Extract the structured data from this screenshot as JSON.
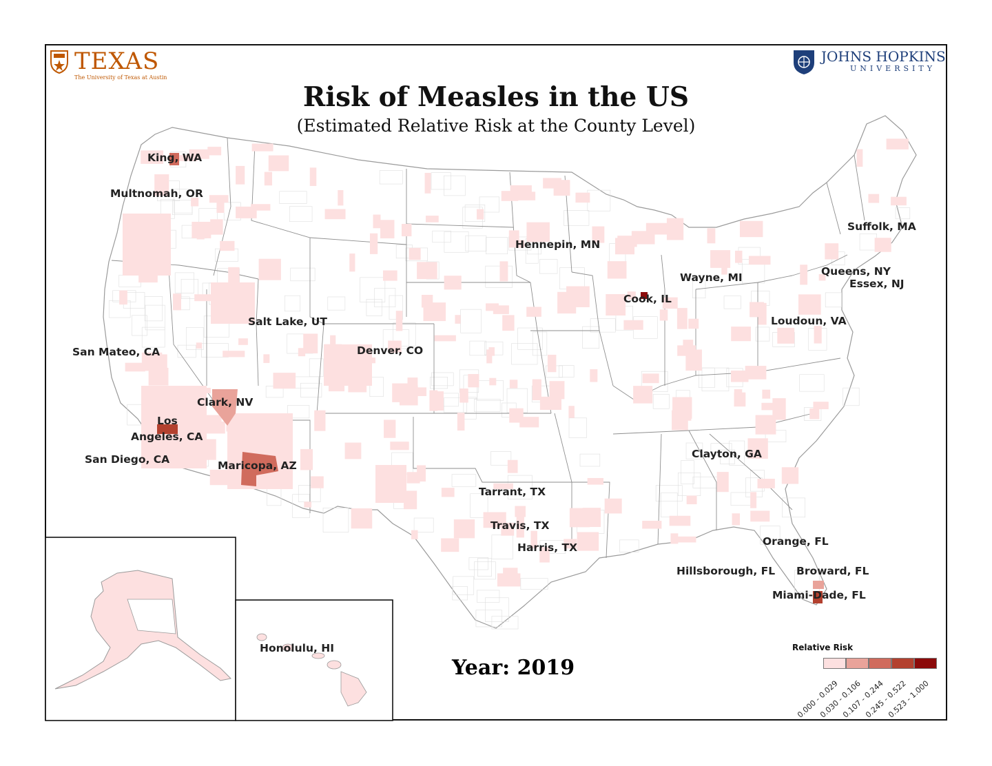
{
  "logos": {
    "texas": {
      "word": "TEXAS",
      "sub": "The University of Texas at Austin"
    },
    "jhu": {
      "word": "JOHNS HOPKINS",
      "sub": "UNIVERSITY"
    }
  },
  "title": "Risk of  Measles in the US",
  "subtitle": "(Estimated Relative Risk at the County Level)",
  "year_label": "Year: 2019",
  "colors": {
    "bin1": "#fde0e0",
    "bin2": "#e9a39a",
    "bin3": "#d06b5d",
    "bin4": "#b3412f",
    "bin5": "#8c0a0a",
    "border": "#a8a8a8"
  },
  "counties": [
    {
      "label": "King, WA",
      "bin": 3
    },
    {
      "label": "Multnomah, OR",
      "bin": 1
    },
    {
      "label": "San Mateo, CA",
      "bin": 1
    },
    {
      "label": "Salt Lake, UT",
      "bin": 1
    },
    {
      "label": "Denver, CO",
      "bin": 1
    },
    {
      "label": "Clark, NV",
      "bin": 2
    },
    {
      "label": "Los",
      "bin": 4
    },
    {
      "label": "Angeles, CA",
      "bin": 4
    },
    {
      "label": "San Diego, CA",
      "bin": 1
    },
    {
      "label": "Maricopa, AZ",
      "bin": 3
    },
    {
      "label": "Hennepin, MN",
      "bin": 1
    },
    {
      "label": "Cook, IL",
      "bin": 5
    },
    {
      "label": "Wayne, MI",
      "bin": 1
    },
    {
      "label": "Suffolk, MA",
      "bin": 1
    },
    {
      "label": "Queens, NY",
      "bin": 1
    },
    {
      "label": "Essex, NJ",
      "bin": 1
    },
    {
      "label": "Loudoun, VA",
      "bin": 1
    },
    {
      "label": "Clayton, GA",
      "bin": 1
    },
    {
      "label": "Tarrant, TX",
      "bin": 1
    },
    {
      "label": "Travis, TX",
      "bin": 1
    },
    {
      "label": "Harris, TX",
      "bin": 1
    },
    {
      "label": "Orange, FL",
      "bin": 1
    },
    {
      "label": "Hillsborough, FL",
      "bin": 1
    },
    {
      "label": "Broward, FL",
      "bin": 2
    },
    {
      "label": "Miami-Dade, FL",
      "bin": 4
    },
    {
      "label": "Honolulu, HI",
      "bin": 1
    }
  ],
  "legend": {
    "title": "Relative Risk",
    "bins": [
      "0.000 - 0.029",
      "0.030 - 0.106",
      "0.107 - 0.244",
      "0.245 - 0.522",
      "0.523 - 1.000"
    ]
  }
}
